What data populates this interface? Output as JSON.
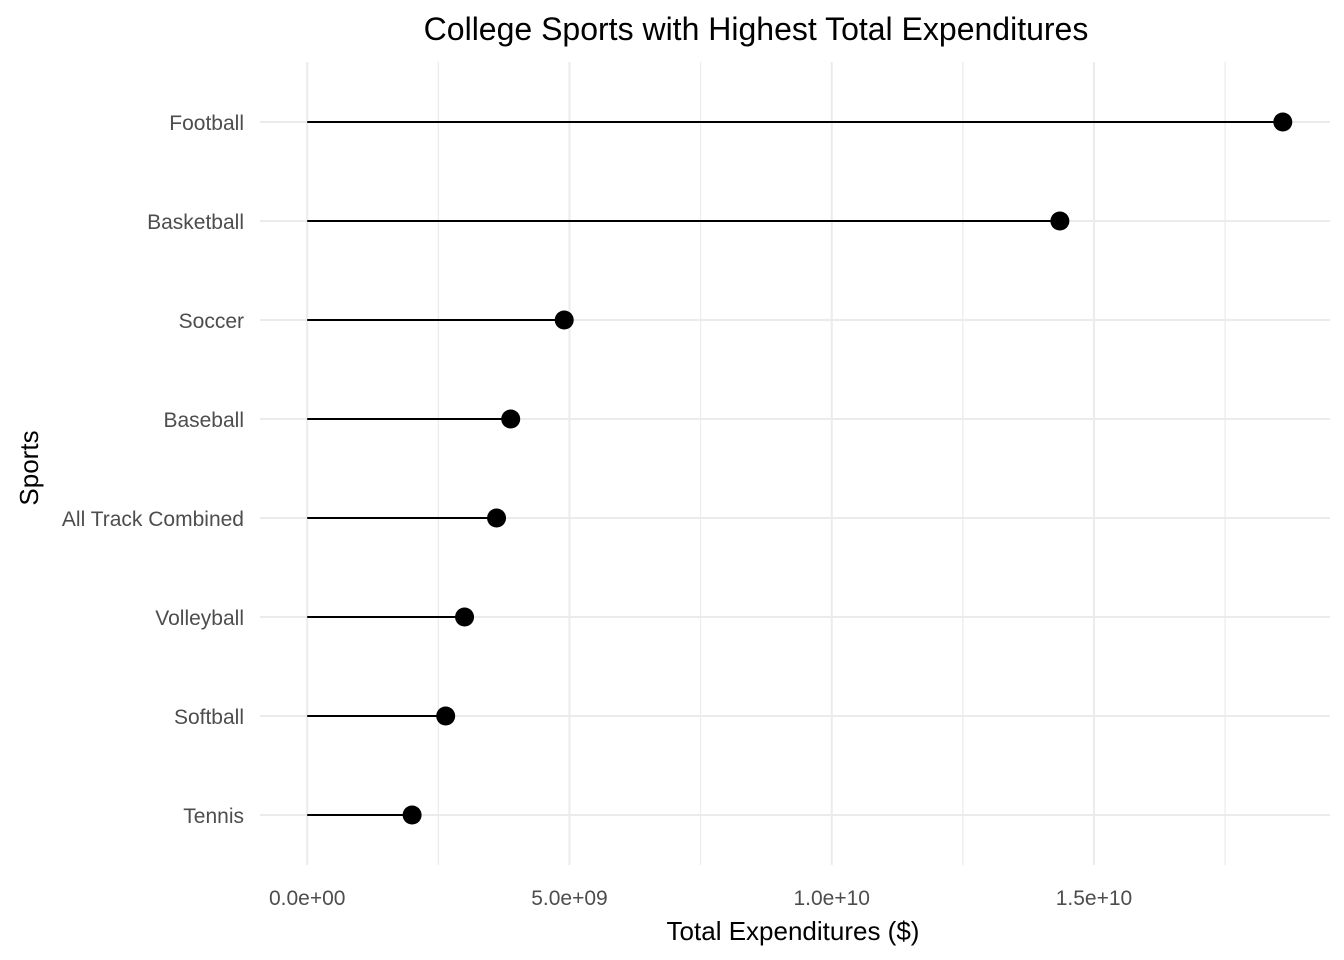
{
  "chart_data": {
    "type": "lollipop",
    "title": "College Sports with Highest Total Expenditures",
    "xlabel": "Total Expenditures ($)",
    "ylabel": "Sports",
    "categories": [
      "Football",
      "Basketball",
      "Soccer",
      "Baseball",
      "All Track Combined",
      "Volleyball",
      "Softball",
      "Tennis"
    ],
    "values": [
      18600000000,
      14350000000,
      4900000000,
      3880000000,
      3610000000,
      3000000000,
      2640000000,
      2000000000
    ],
    "xlim": [
      -900000000,
      19500000000
    ],
    "x_ticks": [
      0,
      5000000000,
      10000000000,
      15000000000
    ],
    "x_tick_labels": [
      "0.0e+00",
      "5.0e+09",
      "1.0e+10",
      "1.5e+10"
    ],
    "x_minor_ticks": [
      2500000000,
      7500000000,
      12500000000,
      17500000000
    ],
    "grid": true,
    "colors": {
      "mark": "#000000",
      "grid": "#ebebeb",
      "tick_text": "#4d4d4d"
    }
  }
}
